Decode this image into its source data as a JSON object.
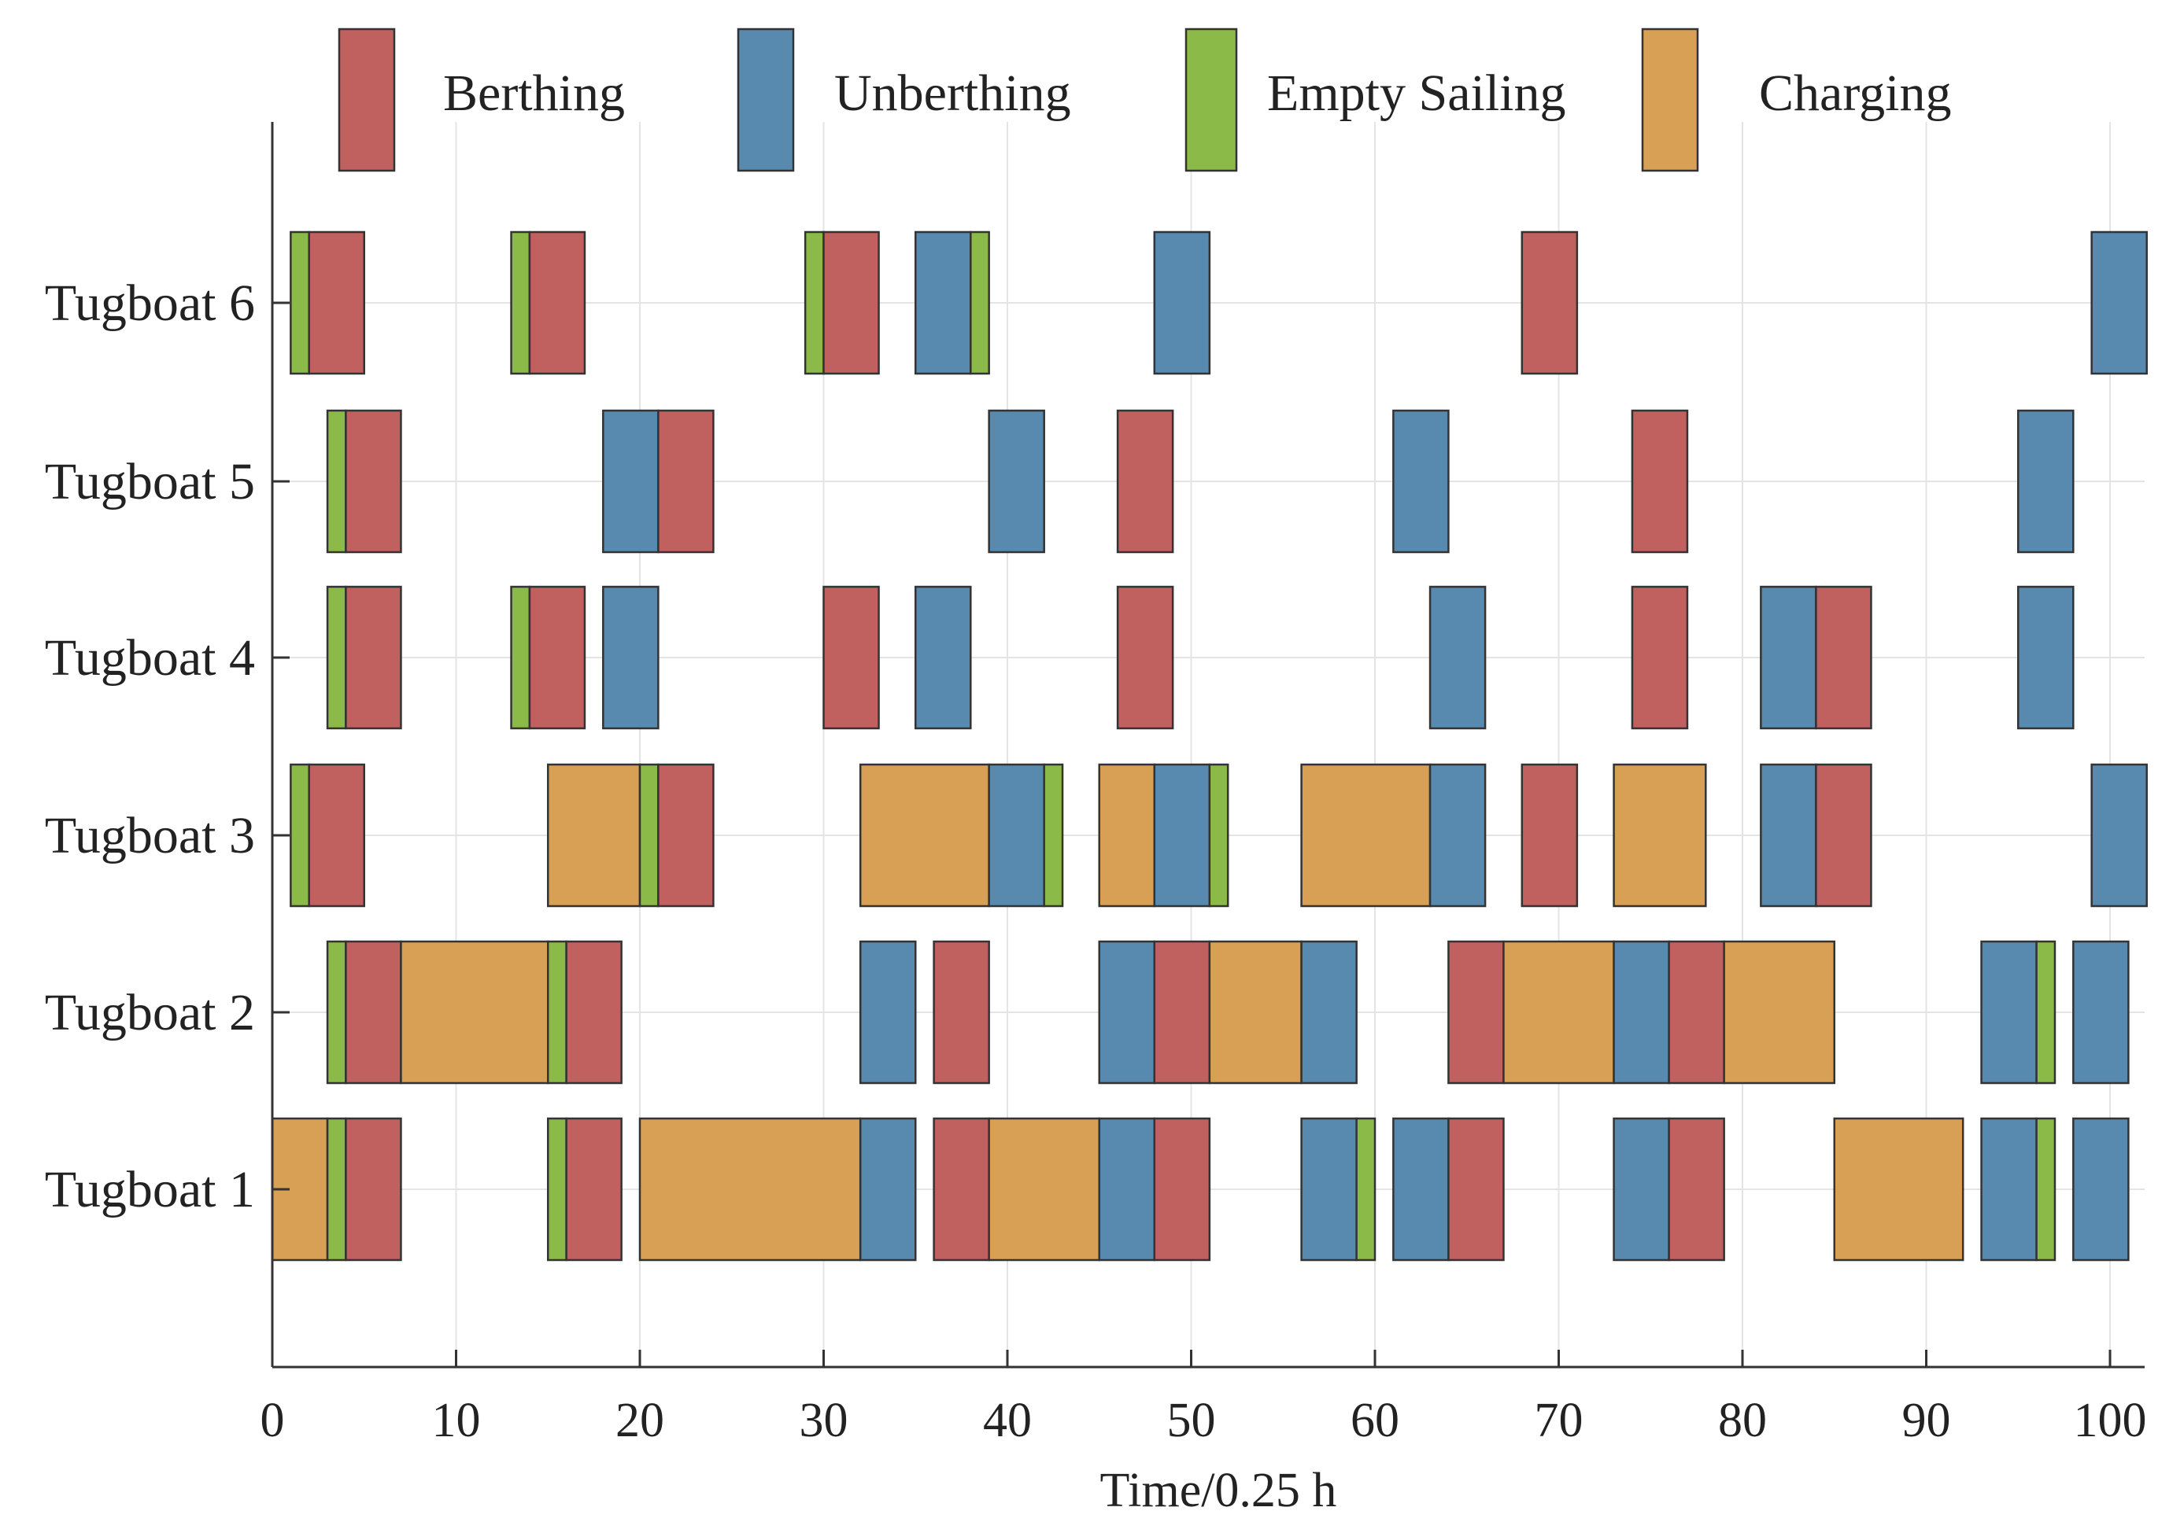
{
  "chart_data": {
    "type": "gantt",
    "xlabel": "Time/0.25 h",
    "ylabel": "",
    "xlim": [
      0,
      102
    ],
    "xticks": [
      0,
      10,
      20,
      30,
      40,
      50,
      60,
      70,
      80,
      90,
      100
    ],
    "grid": true,
    "legend_position": "top",
    "categories": [
      "Tugboat 1",
      "Tugboat 2",
      "Tugboat 3",
      "Tugboat 4",
      "Tugboat 5",
      "Tugboat 6"
    ],
    "tasks": [
      {
        "key": "berthing",
        "name": "Berthing",
        "color": "#C0605F"
      },
      {
        "key": "unberthing",
        "name": "Unberthing",
        "color": "#5889AF"
      },
      {
        "key": "empty",
        "name": "Empty Sailing",
        "color": "#8BBA48"
      },
      {
        "key": "charging",
        "name": "Charging",
        "color": "#D8A055"
      }
    ],
    "schedule": [
      {
        "tugboat": "Tugboat 1",
        "segments": [
          {
            "task": "charging",
            "start": 0,
            "end": 3
          },
          {
            "task": "empty",
            "start": 3,
            "end": 4
          },
          {
            "task": "berthing",
            "start": 4,
            "end": 7
          },
          {
            "task": "empty",
            "start": 15,
            "end": 16
          },
          {
            "task": "berthing",
            "start": 16,
            "end": 19
          },
          {
            "task": "charging",
            "start": 20,
            "end": 32
          },
          {
            "task": "unberthing",
            "start": 32,
            "end": 35
          },
          {
            "task": "berthing",
            "start": 36,
            "end": 39
          },
          {
            "task": "charging",
            "start": 39,
            "end": 45
          },
          {
            "task": "unberthing",
            "start": 45,
            "end": 48
          },
          {
            "task": "berthing",
            "start": 48,
            "end": 51
          },
          {
            "task": "unberthing",
            "start": 56,
            "end": 59
          },
          {
            "task": "empty",
            "start": 59,
            "end": 60
          },
          {
            "task": "unberthing",
            "start": 61,
            "end": 64
          },
          {
            "task": "berthing",
            "start": 64,
            "end": 67
          },
          {
            "task": "unberthing",
            "start": 73,
            "end": 76
          },
          {
            "task": "berthing",
            "start": 76,
            "end": 79
          },
          {
            "task": "charging",
            "start": 85,
            "end": 92
          },
          {
            "task": "unberthing",
            "start": 93,
            "end": 96
          },
          {
            "task": "empty",
            "start": 96,
            "end": 97
          },
          {
            "task": "unberthing",
            "start": 98,
            "end": 101
          }
        ]
      },
      {
        "tugboat": "Tugboat 2",
        "segments": [
          {
            "task": "empty",
            "start": 3,
            "end": 4
          },
          {
            "task": "berthing",
            "start": 4,
            "end": 7
          },
          {
            "task": "charging",
            "start": 7,
            "end": 15
          },
          {
            "task": "empty",
            "start": 15,
            "end": 16
          },
          {
            "task": "berthing",
            "start": 16,
            "end": 19
          },
          {
            "task": "unberthing",
            "start": 32,
            "end": 35
          },
          {
            "task": "berthing",
            "start": 36,
            "end": 39
          },
          {
            "task": "unberthing",
            "start": 45,
            "end": 48
          },
          {
            "task": "berthing",
            "start": 48,
            "end": 51
          },
          {
            "task": "charging",
            "start": 51,
            "end": 56
          },
          {
            "task": "unberthing",
            "start": 56,
            "end": 59
          },
          {
            "task": "berthing",
            "start": 64,
            "end": 67
          },
          {
            "task": "charging",
            "start": 67,
            "end": 73
          },
          {
            "task": "unberthing",
            "start": 73,
            "end": 76
          },
          {
            "task": "berthing",
            "start": 76,
            "end": 79
          },
          {
            "task": "charging",
            "start": 79,
            "end": 85
          },
          {
            "task": "unberthing",
            "start": 93,
            "end": 96
          },
          {
            "task": "empty",
            "start": 96,
            "end": 97
          },
          {
            "task": "unberthing",
            "start": 98,
            "end": 101
          }
        ]
      },
      {
        "tugboat": "Tugboat 3",
        "segments": [
          {
            "task": "empty",
            "start": 1,
            "end": 2
          },
          {
            "task": "berthing",
            "start": 2,
            "end": 5
          },
          {
            "task": "charging",
            "start": 15,
            "end": 20
          },
          {
            "task": "empty",
            "start": 20,
            "end": 21
          },
          {
            "task": "berthing",
            "start": 21,
            "end": 24
          },
          {
            "task": "charging",
            "start": 32,
            "end": 39
          },
          {
            "task": "unberthing",
            "start": 39,
            "end": 42
          },
          {
            "task": "empty",
            "start": 42,
            "end": 43
          },
          {
            "task": "charging",
            "start": 45,
            "end": 48
          },
          {
            "task": "unberthing",
            "start": 48,
            "end": 51
          },
          {
            "task": "empty",
            "start": 51,
            "end": 52
          },
          {
            "task": "charging",
            "start": 56,
            "end": 63
          },
          {
            "task": "unberthing",
            "start": 63,
            "end": 66
          },
          {
            "task": "berthing",
            "start": 68,
            "end": 71
          },
          {
            "task": "charging",
            "start": 73,
            "end": 78
          },
          {
            "task": "unberthing",
            "start": 81,
            "end": 84
          },
          {
            "task": "berthing",
            "start": 84,
            "end": 87
          },
          {
            "task": "unberthing",
            "start": 99,
            "end": 102
          }
        ]
      },
      {
        "tugboat": "Tugboat 4",
        "segments": [
          {
            "task": "empty",
            "start": 3,
            "end": 4
          },
          {
            "task": "berthing",
            "start": 4,
            "end": 7
          },
          {
            "task": "empty",
            "start": 13,
            "end": 14
          },
          {
            "task": "berthing",
            "start": 14,
            "end": 17
          },
          {
            "task": "unberthing",
            "start": 18,
            "end": 21
          },
          {
            "task": "berthing",
            "start": 30,
            "end": 33
          },
          {
            "task": "unberthing",
            "start": 35,
            "end": 38
          },
          {
            "task": "berthing",
            "start": 46,
            "end": 49
          },
          {
            "task": "unberthing",
            "start": 63,
            "end": 66
          },
          {
            "task": "berthing",
            "start": 74,
            "end": 77
          },
          {
            "task": "unberthing",
            "start": 81,
            "end": 84
          },
          {
            "task": "berthing",
            "start": 84,
            "end": 87
          },
          {
            "task": "unberthing",
            "start": 95,
            "end": 98
          }
        ]
      },
      {
        "tugboat": "Tugboat 5",
        "segments": [
          {
            "task": "empty",
            "start": 3,
            "end": 4
          },
          {
            "task": "berthing",
            "start": 4,
            "end": 7
          },
          {
            "task": "unberthing",
            "start": 18,
            "end": 21
          },
          {
            "task": "berthing",
            "start": 21,
            "end": 24
          },
          {
            "task": "unberthing",
            "start": 39,
            "end": 42
          },
          {
            "task": "berthing",
            "start": 46,
            "end": 49
          },
          {
            "task": "unberthing",
            "start": 61,
            "end": 64
          },
          {
            "task": "berthing",
            "start": 74,
            "end": 77
          },
          {
            "task": "unberthing",
            "start": 95,
            "end": 98
          }
        ]
      },
      {
        "tugboat": "Tugboat 6",
        "segments": [
          {
            "task": "empty",
            "start": 1,
            "end": 2
          },
          {
            "task": "berthing",
            "start": 2,
            "end": 5
          },
          {
            "task": "empty",
            "start": 13,
            "end": 14
          },
          {
            "task": "berthing",
            "start": 14,
            "end": 17
          },
          {
            "task": "empty",
            "start": 29,
            "end": 30
          },
          {
            "task": "berthing",
            "start": 30,
            "end": 33
          },
          {
            "task": "unberthing",
            "start": 35,
            "end": 38
          },
          {
            "task": "empty",
            "start": 38,
            "end": 39
          },
          {
            "task": "unberthing",
            "start": 48,
            "end": 51
          },
          {
            "task": "berthing",
            "start": 68,
            "end": 71
          },
          {
            "task": "unberthing",
            "start": 99,
            "end": 102
          }
        ]
      }
    ]
  }
}
